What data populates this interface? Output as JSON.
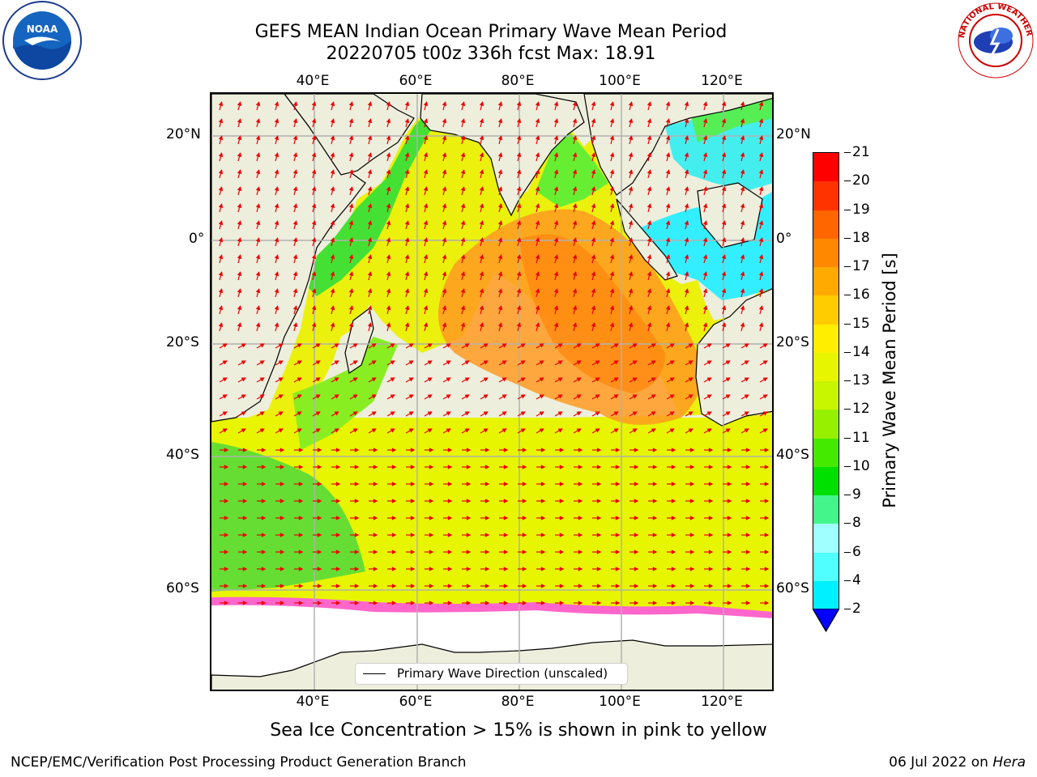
{
  "title": {
    "line1": "GEFS MEAN Indian Ocean Primary Wave Mean Period",
    "line2": "20220705 t00z 336h fcst   Max: 18.91"
  },
  "axes": {
    "lon_ticks": [
      "40°E",
      "60°E",
      "80°E",
      "100°E",
      "120°E"
    ],
    "lat_ticks_left": [
      "20°N",
      "0°",
      "20°S",
      "40°S",
      "60°S"
    ],
    "lat_ticks_right": [
      "20°N",
      "0°",
      "20°S",
      "40°S",
      "60°S"
    ]
  },
  "legend": {
    "label": "Primary Wave Direction (unscaled)"
  },
  "colorbar": {
    "label": "Primary Wave Mean Period [s]",
    "ticks": [
      "21",
      "20",
      "19",
      "18",
      "17",
      "16",
      "15",
      "14",
      "13",
      "12",
      "11",
      "10",
      "9",
      "8",
      "6",
      "4",
      "2"
    ],
    "colors": [
      "#ff0000",
      "#ff3300",
      "#ff6600",
      "#ff8800",
      "#ffaa00",
      "#ffcc00",
      "#ffee00",
      "#e8f500",
      "#c8f500",
      "#96f000",
      "#44ea00",
      "#00e000",
      "#44f58c",
      "#a0ffff",
      "#50ffff",
      "#00f0ff",
      "#0080ff"
    ],
    "extend_color": "#0000ff"
  },
  "caption": "Sea Ice Concentration > 15% is shown in pink to yellow",
  "footer": {
    "left": "NCEP/EMC/Verification Post Processing Product Generation Branch",
    "right_prefix": "06 Jul 2022 on ",
    "right_host": "Hera"
  },
  "logos": {
    "noaa_text": "NOAA",
    "nws_text": "NATIONAL WEATHER SERVICE"
  }
}
